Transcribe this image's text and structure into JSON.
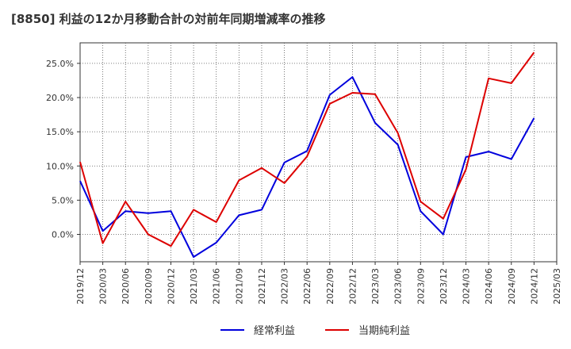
{
  "chart_data": {
    "type": "line",
    "title": "[8850]  利益の12か月移動合計の対前年同期増減率の推移",
    "xlabel": "",
    "ylabel": "",
    "ylim": [
      -4.0,
      28.0
    ],
    "yticks": [
      0,
      5,
      10,
      15,
      20,
      25
    ],
    "ytick_labels": [
      "0.0%",
      "5.0%",
      "10.0%",
      "15.0%",
      "20.0%",
      "25.0%"
    ],
    "categories": [
      "2019/12",
      "2020/03",
      "2020/06",
      "2020/09",
      "2020/12",
      "2021/03",
      "2021/06",
      "2021/09",
      "2021/12",
      "2022/03",
      "2022/06",
      "2022/09",
      "2022/12",
      "2023/03",
      "2023/06",
      "2023/09",
      "2023/12",
      "2024/03",
      "2024/06",
      "2024/09",
      "2024/12",
      "2025/03"
    ],
    "grid": true,
    "legend_position": "bottom",
    "series": [
      {
        "name": "経常利益",
        "color": "#0000dd",
        "values": [
          7.8,
          0.5,
          3.4,
          3.1,
          3.4,
          -3.3,
          -1.2,
          2.8,
          3.6,
          10.5,
          12.2,
          20.4,
          23.0,
          16.3,
          13.1,
          3.4,
          0.0,
          11.3,
          12.1,
          11.0,
          17.0,
          null
        ]
      },
      {
        "name": "当期純利益",
        "color": "#dd0000",
        "values": [
          10.6,
          -1.3,
          4.8,
          0.0,
          -1.7,
          3.6,
          1.8,
          7.9,
          9.7,
          7.5,
          11.4,
          19.1,
          20.7,
          20.5,
          14.8,
          4.8,
          2.3,
          9.5,
          22.8,
          22.1,
          26.6,
          null
        ]
      }
    ]
  }
}
